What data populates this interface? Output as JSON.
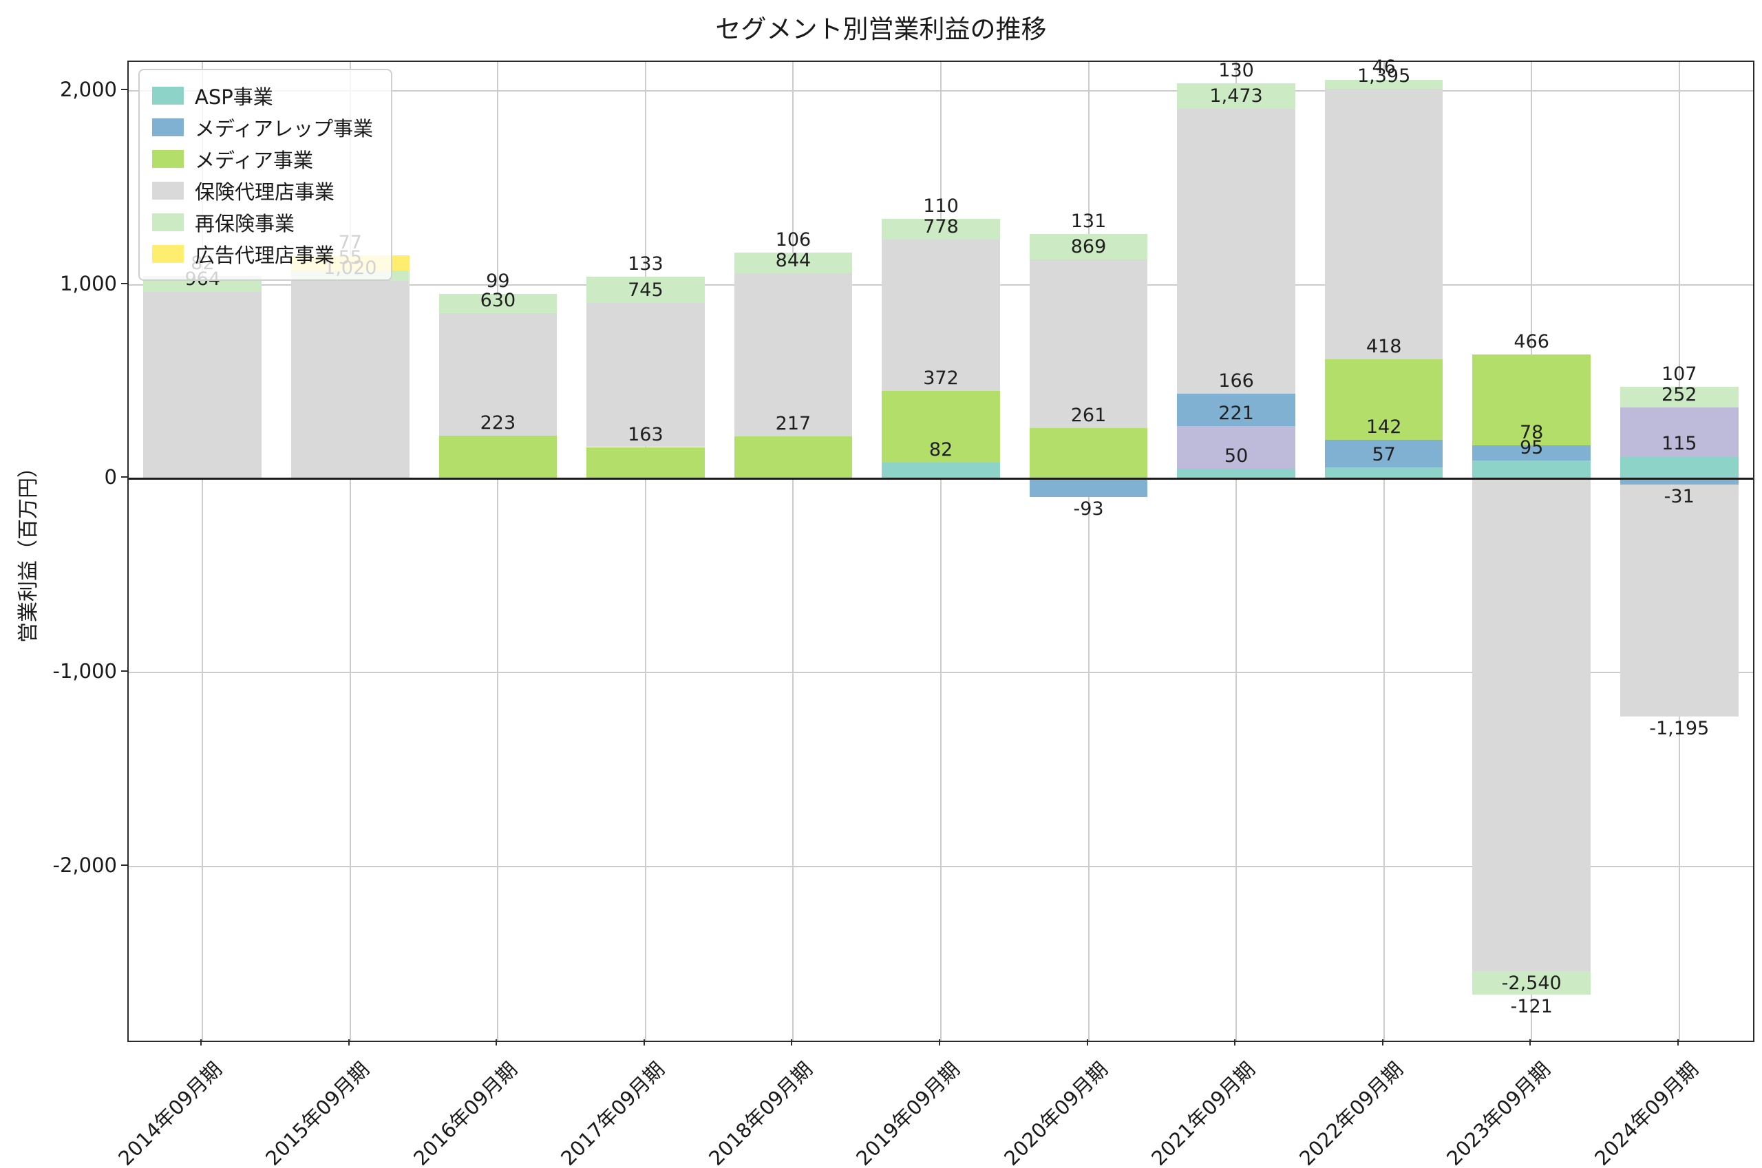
{
  "chart_data": {
    "type": "bar",
    "stacked": true,
    "title": "セグメント別営業利益の推移",
    "xlabel": "",
    "ylabel": "営業利益（百万円）",
    "categories": [
      "2014年09月期",
      "2015年09月期",
      "2016年09月期",
      "2017年09月期",
      "2018年09月期",
      "2019年09月期",
      "2020年09月期",
      "2021年09月期",
      "2022年09月期",
      "2023年09月期",
      "2024年09月期"
    ],
    "series": [
      {
        "name": "ASP事業",
        "color": "#8dd3c7",
        "in_legend": true,
        "values": [
          0,
          0,
          0,
          0,
          0,
          82,
          0,
          50,
          57,
          95,
          115
        ]
      },
      {
        "name": "",
        "color": "#bebada",
        "in_legend": false,
        "values": [
          0,
          0,
          0,
          0,
          0,
          0,
          0,
          221,
          0,
          0,
          252
        ]
      },
      {
        "name": "メディアレップ事業",
        "color": "#80b1d3",
        "in_legend": true,
        "values": [
          0,
          0,
          0,
          0,
          0,
          0,
          -93,
          166,
          142,
          78,
          -31
        ]
      },
      {
        "name": "メディア事業",
        "color": "#b3de69",
        "in_legend": true,
        "values": [
          0,
          0,
          223,
          163,
          217,
          372,
          261,
          0,
          418,
          466,
          0
        ]
      },
      {
        "name": "保険代理店事業",
        "color": "#d9d9d9",
        "in_legend": true,
        "values": [
          964,
          1020,
          630,
          745,
          844,
          778,
          869,
          1473,
          1395,
          -2540,
          -1195
        ]
      },
      {
        "name": "再保険事業",
        "color": "#ccebc5",
        "in_legend": true,
        "values": [
          82,
          55,
          99,
          133,
          106,
          110,
          131,
          130,
          46,
          -121,
          107
        ]
      },
      {
        "name": "広告代理店事業",
        "color": "#ffed6f",
        "in_legend": true,
        "values": [
          0,
          77,
          0,
          0,
          0,
          0,
          0,
          0,
          0,
          0,
          0
        ]
      }
    ],
    "yticks": [
      2000,
      1000,
      0,
      -1000,
      -2000
    ],
    "ylim": [
      -2900,
      2150
    ],
    "grid": true,
    "zero_line": true,
    "legend_position": "upper left",
    "grid_color": "#cccccc",
    "background": "#ffffff"
  }
}
